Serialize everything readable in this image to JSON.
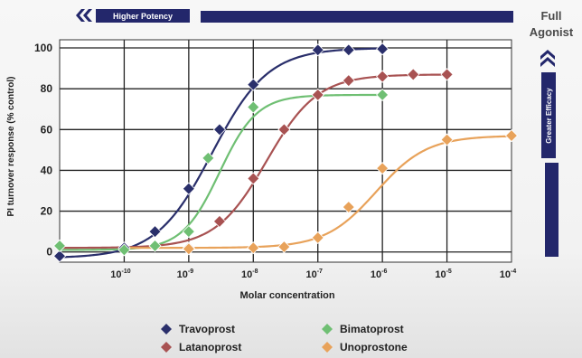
{
  "banner": {
    "left_label": "Higher Potency",
    "right_label_line1": "Full",
    "right_label_line2": "Agonist",
    "side_label": "Greater Efficacy"
  },
  "chart_data": {
    "type": "line",
    "xlabel": "Molar concentration",
    "ylabel": "PI turnover response (% control)",
    "x_scale": "log",
    "xlim": [
      1e-11,
      0.0001
    ],
    "ylim": [
      0,
      100
    ],
    "x_ticks": [
      {
        "value": 1e-10,
        "base": "10",
        "exp": "-10"
      },
      {
        "value": 1e-09,
        "base": "10",
        "exp": "-9"
      },
      {
        "value": 1e-08,
        "base": "10",
        "exp": "-8"
      },
      {
        "value": 1e-07,
        "base": "10",
        "exp": "-7"
      },
      {
        "value": 1e-06,
        "base": "10",
        "exp": "-6"
      },
      {
        "value": 1e-05,
        "base": "10",
        "exp": "-5"
      },
      {
        "value": 0.0001,
        "base": "10",
        "exp": "-4"
      }
    ],
    "y_ticks": [
      0,
      20,
      40,
      60,
      80,
      100
    ],
    "grid": true,
    "legend_position": "bottom",
    "series": [
      {
        "name": "Travoprost",
        "color": "#2a2f6b",
        "marker": "diamond",
        "points": [
          [
            1e-11,
            -2
          ],
          [
            1e-10,
            2
          ],
          [
            3e-10,
            10
          ],
          [
            1e-09,
            31
          ],
          [
            3e-09,
            60
          ],
          [
            1e-08,
            82
          ],
          [
            1e-07,
            99
          ],
          [
            3e-07,
            99
          ],
          [
            1e-06,
            99.5
          ]
        ],
        "curve": {
          "bottom": -3,
          "top": 100,
          "ec50": 2.3e-09,
          "hill": 1.0,
          "xmin": 1e-11,
          "xmax": 1e-06
        }
      },
      {
        "name": "Bimatoprost",
        "color": "#6fbf73",
        "marker": "diamond",
        "points": [
          [
            1e-11,
            3
          ],
          [
            1e-10,
            1
          ],
          [
            3e-10,
            3
          ],
          [
            1e-09,
            10
          ],
          [
            2e-09,
            46
          ],
          [
            1e-08,
            71
          ],
          [
            1e-07,
            77
          ],
          [
            1e-06,
            77
          ]
        ],
        "curve": {
          "bottom": 1,
          "top": 77,
          "ec50": 3e-09,
          "hill": 1.5,
          "xmin": 1e-11,
          "xmax": 1e-06
        }
      },
      {
        "name": "Latanoprost",
        "color": "#a85252",
        "marker": "diamond",
        "points": [
          [
            1e-09,
            2
          ],
          [
            3e-09,
            15
          ],
          [
            1e-08,
            36
          ],
          [
            3e-08,
            60
          ],
          [
            1e-07,
            77
          ],
          [
            3e-07,
            84
          ],
          [
            1e-06,
            86
          ],
          [
            3e-06,
            87
          ],
          [
            1e-05,
            87
          ]
        ],
        "curve": {
          "bottom": 2,
          "top": 87,
          "ec50": 1.6e-08,
          "hill": 1.1,
          "xmin": 1e-11,
          "xmax": 1e-05
        }
      },
      {
        "name": "Unoprostone",
        "color": "#e8a25a",
        "marker": "diamond",
        "points": [
          [
            1e-09,
            1.5
          ],
          [
            1e-08,
            2
          ],
          [
            3e-08,
            2.5
          ],
          [
            1e-07,
            7
          ],
          [
            3e-07,
            22
          ],
          [
            1e-06,
            41
          ],
          [
            1e-05,
            55
          ],
          [
            0.0001,
            57
          ]
        ],
        "curve": {
          "bottom": 2,
          "top": 57,
          "ec50": 8e-07,
          "hill": 1.1,
          "xmin": 1e-10,
          "xmax": 0.0001
        }
      }
    ]
  }
}
